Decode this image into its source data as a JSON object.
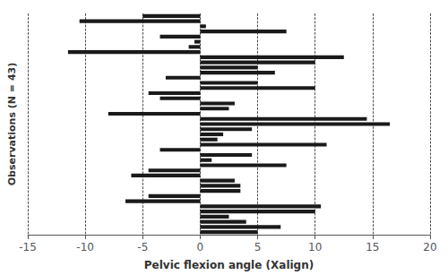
{
  "chart_data": {
    "type": "bar",
    "orientation": "horizontal",
    "xlabel": "Pelvic flexion angle (Xalign)",
    "ylabel": "Observations (N = 43)",
    "values": [
      -5.0,
      -10.5,
      0.5,
      7.5,
      -3.5,
      -0.5,
      -1.0,
      -11.5,
      12.5,
      10.0,
      5.0,
      6.5,
      -3.0,
      5.0,
      10.0,
      -4.5,
      -3.5,
      3.0,
      2.5,
      -8.0,
      14.5,
      16.5,
      4.5,
      2.0,
      1.5,
      11.0,
      -3.5,
      4.5,
      1.0,
      7.5,
      -4.5,
      -6.0,
      3.0,
      3.5,
      3.5,
      -4.5,
      -6.5,
      10.5,
      10.0,
      2.5,
      4.0,
      7.0,
      5.0
    ],
    "color": "#1a1a1a",
    "xlim": [
      -15,
      20
    ],
    "xticks": [
      -15,
      -10,
      -5,
      0,
      5,
      10,
      15,
      20
    ],
    "grid": true,
    "tick_labels": "x"
  }
}
